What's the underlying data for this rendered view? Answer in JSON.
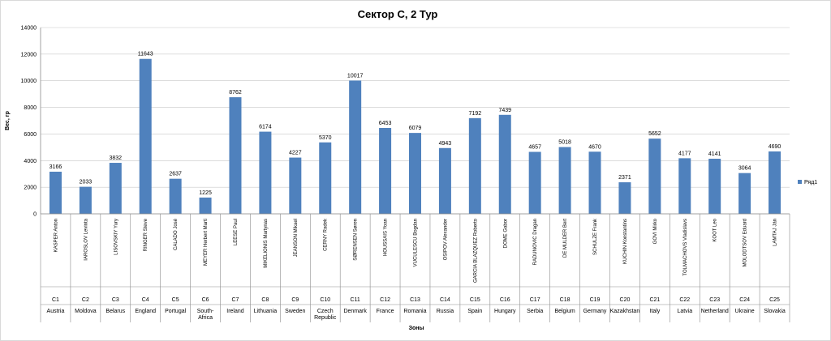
{
  "chart_data": {
    "type": "bar",
    "title": "Сектор С, 2 Тур",
    "ylabel": "Вес, гр",
    "xlabel": "Зоны",
    "ylim": [
      0,
      14000
    ],
    "yticks": [
      0,
      2000,
      4000,
      6000,
      8000,
      10000,
      12000,
      14000
    ],
    "grid": true,
    "legend_position": "right",
    "bar_color": "#4f81bd",
    "series": [
      {
        "name": "Ряд1",
        "values": [
          3166,
          2033,
          3832,
          11643,
          2637,
          1225,
          8762,
          6174,
          4227,
          5370,
          10017,
          6453,
          6079,
          4943,
          7192,
          7439,
          4657,
          5018,
          4670,
          2371,
          5652,
          4177,
          4141,
          3064,
          4690
        ]
      }
    ],
    "categories": [
      {
        "name": "KASPER Anton",
        "zone": "C1",
        "country": [
          "Austria"
        ]
      },
      {
        "name": "IAROSLOV Levinta",
        "zone": "C2",
        "country": [
          "Moldova"
        ]
      },
      {
        "name": "LISOVSKIY Yury",
        "zone": "C3",
        "country": [
          "Belarus"
        ]
      },
      {
        "name": "RINGER Steve",
        "zone": "C4",
        "country": [
          "England"
        ]
      },
      {
        "name": "CALADO José",
        "zone": "C5",
        "country": [
          "Portugal"
        ]
      },
      {
        "name": "MEYER Herbert Marti",
        "zone": "C6",
        "country": [
          "South-",
          "Africa"
        ]
      },
      {
        "name": "LEESE Paul",
        "zone": "C7",
        "country": [
          "Ireland"
        ]
      },
      {
        "name": "MIKELIONIS Martynas",
        "zone": "C8",
        "country": [
          "Lithuania"
        ]
      },
      {
        "name": "JEANSON Mikael",
        "zone": "C9",
        "country": [
          "Sweden"
        ]
      },
      {
        "name": "CERNY Radek",
        "zone": "C10",
        "country": [
          "Czech",
          "Republic"
        ]
      },
      {
        "name": "SØRENSEN Søren",
        "zone": "C11",
        "country": [
          "Denmark"
        ]
      },
      {
        "name": "HOUSSAIS Yoan",
        "zone": "C12",
        "country": [
          "France"
        ]
      },
      {
        "name": "VUCULESCU Bogdan",
        "zone": "C13",
        "country": [
          "Romania"
        ]
      },
      {
        "name": "OSIPOV Alexander",
        "zone": "C14",
        "country": [
          "Russia"
        ]
      },
      {
        "name": "GARCIA BLAZQUEZ Roberto",
        "zone": "C15",
        "country": [
          "Spain"
        ]
      },
      {
        "name": "DOME Gabor",
        "zone": "C16",
        "country": [
          "Hungary"
        ]
      },
      {
        "name": "RADUNOVIC Dragan",
        "zone": "C17",
        "country": [
          "Serbia"
        ]
      },
      {
        "name": "DE MULDER Bert",
        "zone": "C18",
        "country": [
          "Belgium"
        ]
      },
      {
        "name": "SCHULZE Frank",
        "zone": "C19",
        "country": [
          "Germany"
        ]
      },
      {
        "name": "KUCHIN Konstantins",
        "zone": "C20",
        "country": [
          "Kazakhstan"
        ]
      },
      {
        "name": "GOVI Mirko",
        "zone": "C21",
        "country": [
          "Italy"
        ]
      },
      {
        "name": "TOLMACHOVS Vladislavs",
        "zone": "C22",
        "country": [
          "Latvia"
        ]
      },
      {
        "name": "KOOT Leo",
        "zone": "C23",
        "country": [
          "Netherland"
        ]
      },
      {
        "name": "MOLODTSOV Eduard",
        "zone": "C24",
        "country": [
          "Ukraine"
        ]
      },
      {
        "name": "LAMTAJ Ján",
        "zone": "C25",
        "country": [
          "Slovakia"
        ]
      }
    ]
  }
}
